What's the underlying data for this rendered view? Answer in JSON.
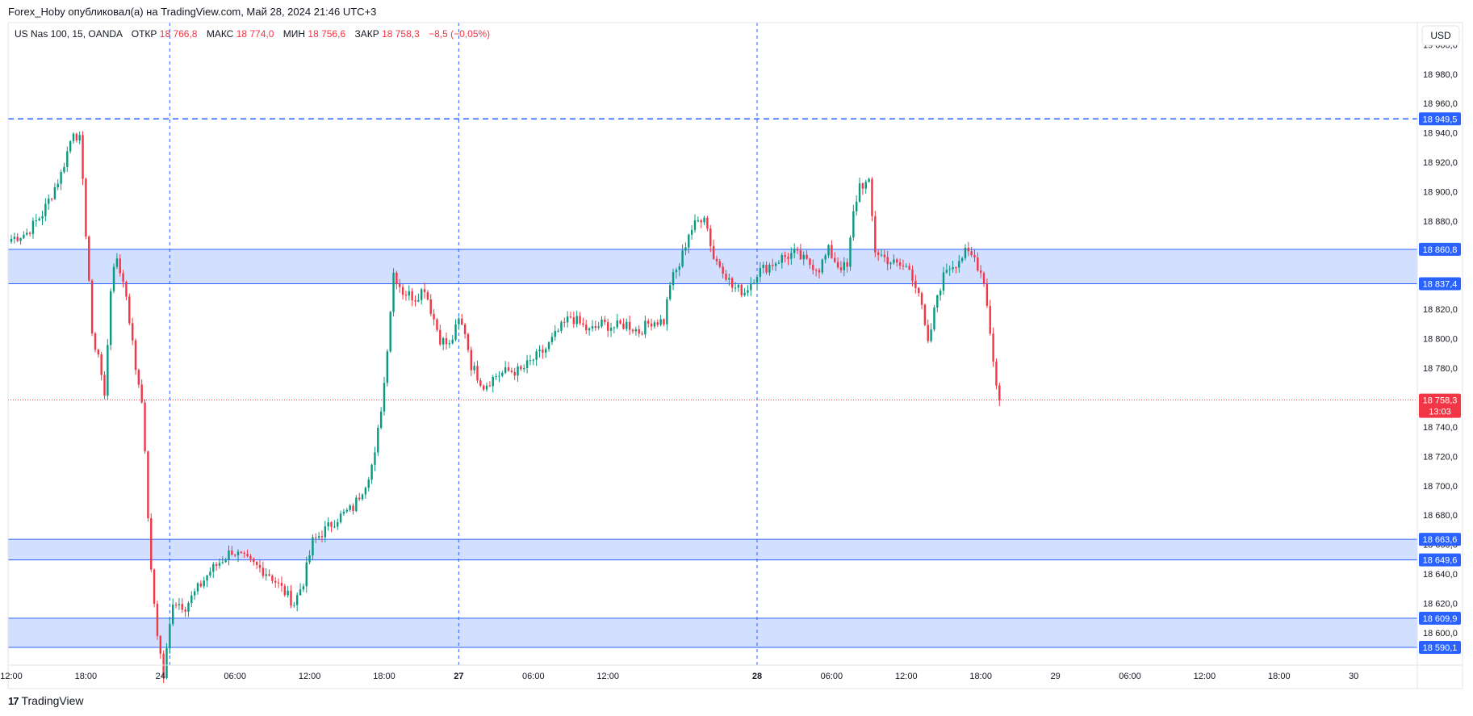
{
  "header": {
    "published": "Forex_Hoby опубликовал(а) на TradingView.com, Май 28, 2024 21:46 UTC+3"
  },
  "footer": {
    "brand": "TradingView"
  },
  "legend": {
    "symbol": "US Nas 100, 15, OANDA",
    "open_label": "ОТКР",
    "open_value": "18 766,8",
    "high_label": "МАКС",
    "high_value": "18 774,0",
    "low_label": "МИН",
    "low_value": "18 756,6",
    "close_label": "ЗАКР",
    "close_value": "18 758,3",
    "change": "−8,5 (−0,05%)"
  },
  "colors": {
    "up": "#089981",
    "down": "#f23645",
    "zone_fill": "#d3dfff",
    "zone_line": "#2962ff",
    "dashed": "#2962ff",
    "price_badge": "#f23645"
  },
  "currency_button": "USD",
  "chart_data": {
    "type": "candlestick",
    "ylim": [
      18578,
      19015
    ],
    "y_ticks": [
      "19 000,0",
      "18 980,0",
      "18 960,0",
      "18 940,0",
      "18 920,0",
      "18 900,0",
      "18 880,0",
      "18 860,0",
      "18 840,0",
      "18 820,0",
      "18 800,0",
      "18 780,0",
      "18 760,0",
      "18 740,0",
      "18 720,0",
      "18 700,0",
      "18 680,0",
      "18 660,0",
      "18 640,0",
      "18 620,0",
      "18 600,0"
    ],
    "y_tick_values": [
      19000,
      18980,
      18960,
      18940,
      18920,
      18900,
      18880,
      18860,
      18840,
      18820,
      18800,
      18780,
      18760,
      18740,
      18720,
      18700,
      18680,
      18660,
      18640,
      18620,
      18600
    ],
    "x_ticks": [
      {
        "label": "12:00",
        "bar": 0
      },
      {
        "label": "18:00",
        "bar": 24
      },
      {
        "label": "24",
        "bar": 48
      },
      {
        "label": "06:00",
        "bar": 72
      },
      {
        "label": "12:00",
        "bar": 96
      },
      {
        "label": "18:00",
        "bar": 120
      },
      {
        "label": "27",
        "bar": 144
      },
      {
        "label": "06:00",
        "bar": 168
      },
      {
        "label": "12:00",
        "bar": 192
      },
      {
        "label": "28",
        "bar": 240
      },
      {
        "label": "06:00",
        "bar": 264
      },
      {
        "label": "12:00",
        "bar": 288
      },
      {
        "label": "18:00",
        "bar": 312
      },
      {
        "label": "29",
        "bar": 336
      },
      {
        "label": "06:00",
        "bar": 360
      },
      {
        "label": "12:00",
        "bar": 384
      },
      {
        "label": "18:00",
        "bar": 408
      },
      {
        "label": "30",
        "bar": 432
      }
    ],
    "x_bold_ticks": [
      "27",
      "28"
    ],
    "session_breaks": [
      51,
      144,
      240
    ],
    "horizontal_lines": [
      {
        "price": 18949.5,
        "label": "18 949,5",
        "style": "dashed"
      }
    ],
    "zones": [
      {
        "top": 18860.8,
        "bottom": 18837.4,
        "top_label": "18 860,8",
        "bottom_label": "18 837,4"
      },
      {
        "top": 18663.6,
        "bottom": 18649.6,
        "top_label": "18 663,6",
        "bottom_label": "18 649,6"
      },
      {
        "top": 18609.9,
        "bottom": 18590.1,
        "top_label": "18 609,9",
        "bottom_label": "18 590,1"
      }
    ],
    "last_price": {
      "price": 18758.3,
      "label": "18 758,3",
      "countdown": "13:03"
    },
    "anchors": [
      [
        0,
        18868
      ],
      [
        5,
        18872
      ],
      [
        10,
        18885
      ],
      [
        16,
        18912
      ],
      [
        20,
        18942
      ],
      [
        22,
        18935
      ],
      [
        23,
        18905
      ],
      [
        25,
        18840
      ],
      [
        26,
        18800
      ],
      [
        28,
        18790
      ],
      [
        30,
        18760
      ],
      [
        32,
        18835
      ],
      [
        34,
        18855
      ],
      [
        37,
        18830
      ],
      [
        40,
        18780
      ],
      [
        42,
        18760
      ],
      [
        45,
        18640
      ],
      [
        47,
        18600
      ],
      [
        49,
        18570
      ],
      [
        52,
        18622
      ],
      [
        56,
        18618
      ],
      [
        60,
        18630
      ],
      [
        64,
        18642
      ],
      [
        68,
        18650
      ],
      [
        71,
        18656
      ],
      [
        75,
        18650
      ],
      [
        79,
        18645
      ],
      [
        83,
        18640
      ],
      [
        87,
        18630
      ],
      [
        91,
        18620
      ],
      [
        94,
        18635
      ],
      [
        97,
        18662
      ],
      [
        101,
        18670
      ],
      [
        105,
        18678
      ],
      [
        110,
        18685
      ],
      [
        114,
        18702
      ],
      [
        117,
        18720
      ],
      [
        120,
        18770
      ],
      [
        123,
        18845
      ],
      [
        126,
        18832
      ],
      [
        130,
        18828
      ],
      [
        133,
        18835
      ],
      [
        135,
        18820
      ],
      [
        138,
        18800
      ],
      [
        141,
        18795
      ],
      [
        144,
        18812
      ],
      [
        146,
        18805
      ],
      [
        148,
        18782
      ],
      [
        152,
        18768
      ],
      [
        156,
        18775
      ],
      [
        160,
        18778
      ],
      [
        164,
        18778
      ],
      [
        168,
        18786
      ],
      [
        172,
        18793
      ],
      [
        176,
        18805
      ],
      [
        180,
        18815
      ],
      [
        183,
        18810
      ],
      [
        186,
        18805
      ],
      [
        190,
        18810
      ],
      [
        194,
        18808
      ],
      [
        198,
        18810
      ],
      [
        202,
        18805
      ],
      [
        206,
        18812
      ],
      [
        210,
        18812
      ],
      [
        212,
        18838
      ],
      [
        215,
        18850
      ],
      [
        218,
        18872
      ],
      [
        221,
        18880
      ],
      [
        223,
        18885
      ],
      [
        226,
        18855
      ],
      [
        229,
        18848
      ],
      [
        232,
        18835
      ],
      [
        236,
        18832
      ],
      [
        240,
        18845
      ],
      [
        244,
        18850
      ],
      [
        248,
        18855
      ],
      [
        252,
        18858
      ],
      [
        256,
        18852
      ],
      [
        260,
        18848
      ],
      [
        263,
        18860
      ],
      [
        266,
        18850
      ],
      [
        269,
        18848
      ],
      [
        271,
        18885
      ],
      [
        273,
        18905
      ],
      [
        276,
        18905
      ],
      [
        278,
        18860
      ],
      [
        281,
        18855
      ],
      [
        285,
        18850
      ],
      [
        289,
        18848
      ],
      [
        292,
        18832
      ],
      [
        295,
        18795
      ],
      [
        298,
        18830
      ],
      [
        301,
        18848
      ],
      [
        304,
        18852
      ],
      [
        307,
        18858
      ],
      [
        310,
        18855
      ],
      [
        313,
        18840
      ],
      [
        315,
        18805
      ],
      [
        317,
        18768
      ],
      [
        318,
        18758
      ]
    ]
  }
}
